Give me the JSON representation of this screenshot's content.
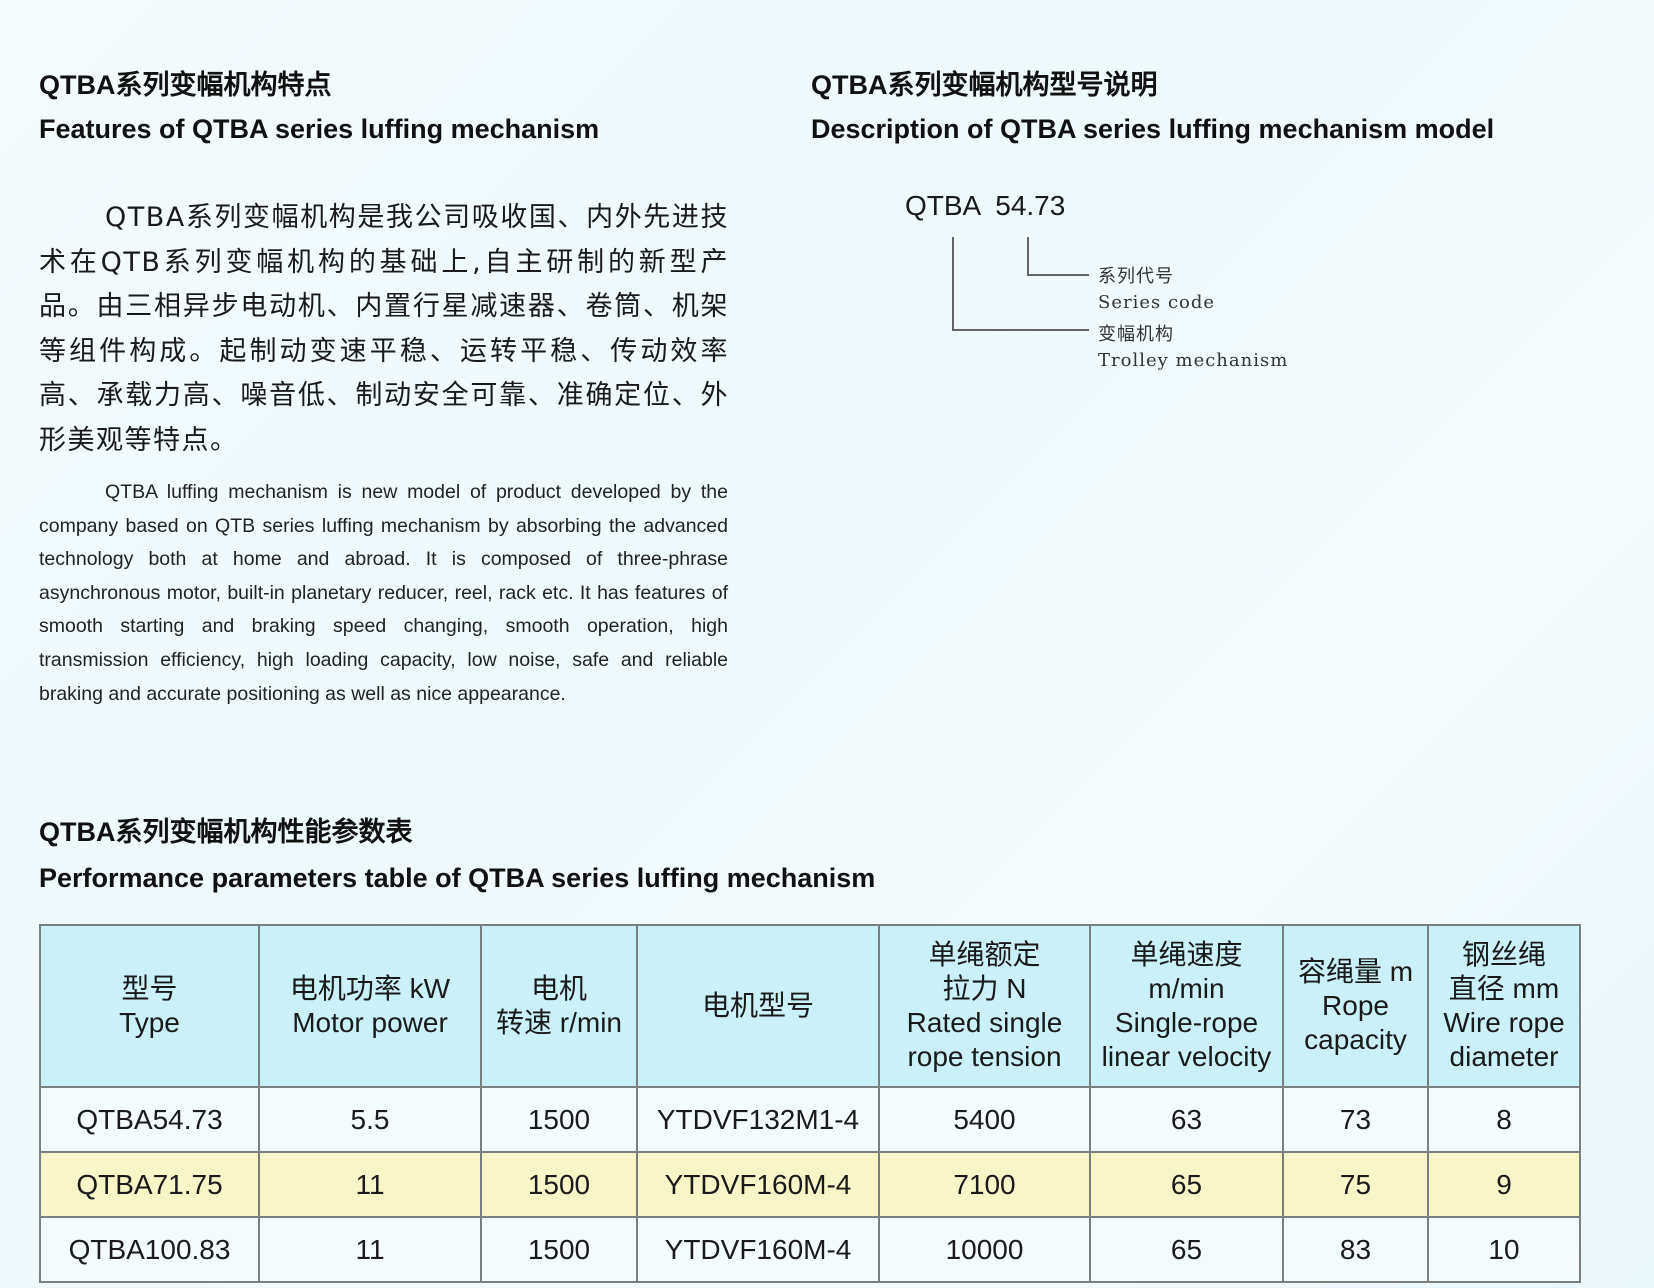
{
  "features": {
    "title_zh": "QTBA系列变幅机构特点",
    "title_en": "Features of QTBA series luffing mechanism",
    "body_zh": "QTBA系列变幅机构是我公司吸收国、内外先进技术在QTB系列变幅机构的基础上,自主研制的新型产品。由三相异步电动机、内置行星减速器、卷筒、机架等组件构成。起制动变速平稳、运转平稳、传动效率高、承载力高、噪音低、制动安全可靠、准确定位、外形美观等特点。",
    "body_en": "QTBA luffing mechanism is new model of product developed by the company based on QTB series luffing mechanism by absorbing the advanced technology both at home and abroad. It is composed of three-phrase asynchronous motor, built-in planetary reducer, reel, rack etc. It has features of smooth starting and braking speed changing, smooth operation, high transmission efficiency, high loading capacity, low noise, safe and reliable braking and accurate positioning as well as nice appearance."
  },
  "model_desc": {
    "title_zh": "QTBA系列变幅机构型号说明",
    "title_en": "Description of QTBA series luffing mechanism model",
    "example": "QTBA  54.73",
    "series_code_zh": "系列代号",
    "series_code_en": "Series code",
    "mechanism_zh": "变幅机构",
    "mechanism_en": "Trolley mechanism"
  },
  "table": {
    "title_zh": "QTBA系列变幅机构性能参数表",
    "title_en": "Performance parameters table of QTBA series luffing mechanism",
    "headers": [
      [
        "型号",
        "Type"
      ],
      [
        "电机功率 kW",
        "Motor power"
      ],
      [
        "电机",
        "转速 r/min"
      ],
      [
        "电机型号"
      ],
      [
        "单绳额定",
        "拉力 N",
        "Rated single",
        "rope tension"
      ],
      [
        "单绳速度",
        "m/min",
        "Single-rope",
        "linear velocity"
      ],
      [
        "容绳量 m",
        "Rope",
        "capacity"
      ],
      [
        "钢丝绳",
        "直径 mm",
        "Wire rope",
        "diameter"
      ]
    ],
    "rows": [
      [
        "QTBA54.73",
        "5.5",
        "1500",
        "YTDVF132M1-4",
        "5400",
        "63",
        "73",
        "8"
      ],
      [
        "QTBA71.75",
        "11",
        "1500",
        "YTDVF160M-4",
        "7100",
        "65",
        "75",
        "9"
      ],
      [
        "QTBA100.83",
        "11",
        "1500",
        "YTDVF160M-4",
        "10000",
        "65",
        "83",
        "10"
      ]
    ],
    "colors": {
      "header": "#c9f1f7",
      "highlight_row": "#f8f6c6"
    }
  }
}
